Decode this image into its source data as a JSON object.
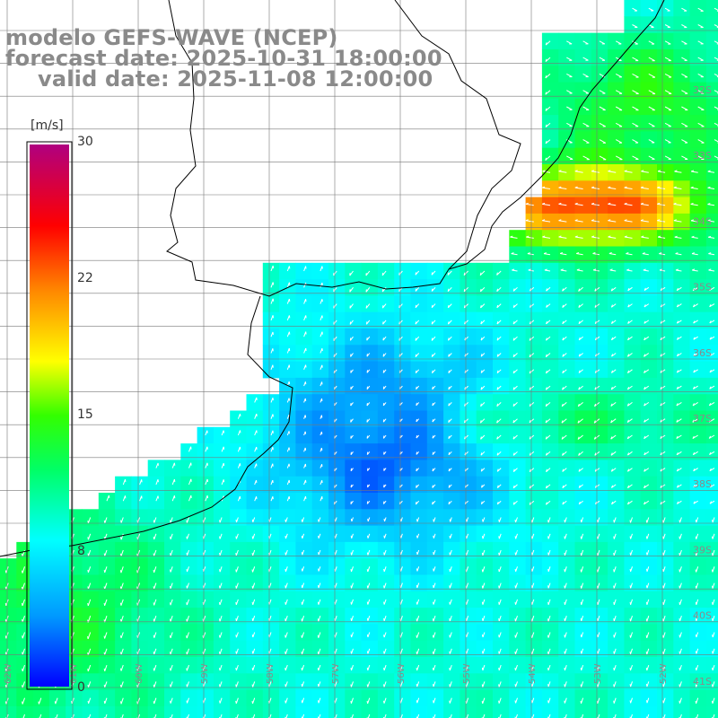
{
  "title": {
    "line1": "modelo GEFS-WAVE (NCEP)",
    "line2": "forecast date: 2025-10-31 18:00:00",
    "line3": "valid date: 2025-11-08 12:00:00"
  },
  "colorbar": {
    "unit": "[m/s]",
    "ticks": [
      "30",
      "22",
      "15",
      "8",
      "0"
    ],
    "tick_values": [
      30,
      22,
      15,
      8,
      0
    ],
    "range": [
      0,
      30
    ],
    "colors": [
      "#0000ff",
      "#00aaff",
      "#00ffff",
      "#00ff55",
      "#33ff00",
      "#ffff00",
      "#ff9900",
      "#ff0000",
      "#ff0055",
      "#b00080"
    ]
  },
  "lat_labels": [
    "32S",
    "33S",
    "34S",
    "35S",
    "36S",
    "37S",
    "38S",
    "39S",
    "40S",
    "41S"
  ],
  "lon_labels": [
    "62W",
    "61W",
    "60W",
    "59W",
    "58W",
    "57W",
    "56W",
    "55W",
    "54W",
    "53W",
    "52W"
  ],
  "field": {
    "variable": "wind speed",
    "description_ranges": "low over Rio de la Plata shelf, high 20-26 m/s offshore near 33-34S 51-52W"
  }
}
